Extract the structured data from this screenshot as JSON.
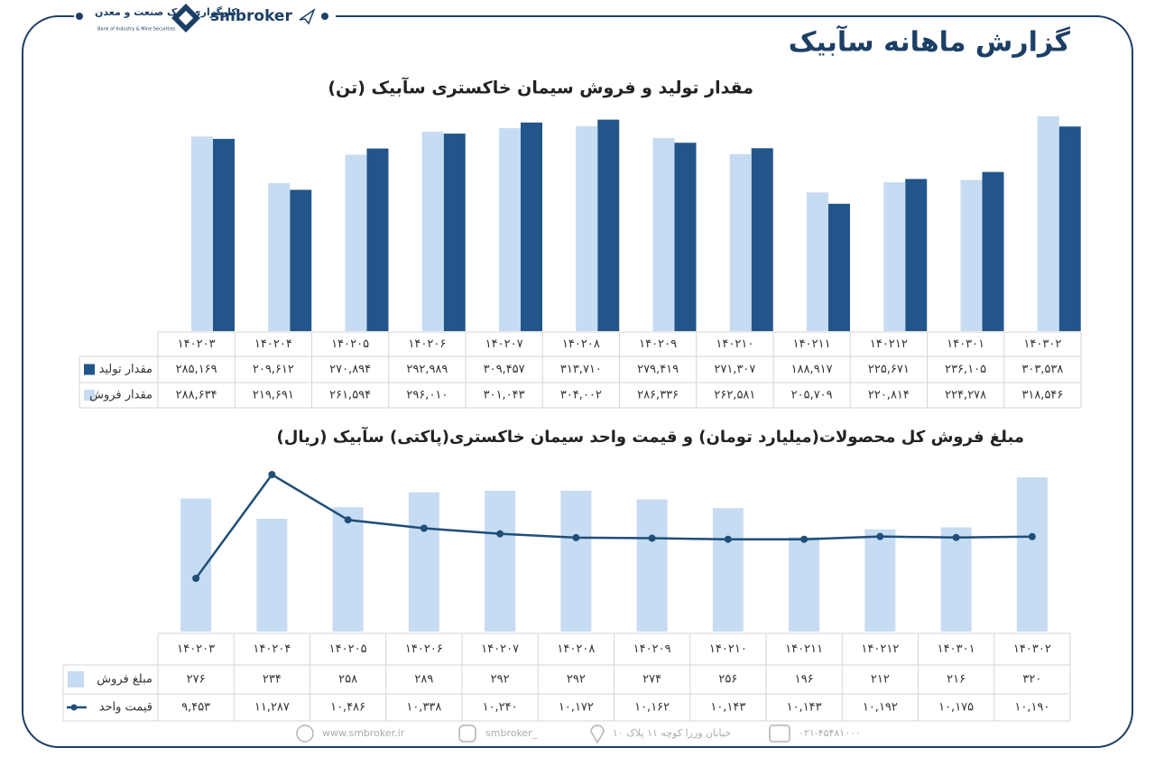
{
  "header": {
    "brand": "smbroker",
    "bank_name": "کارگزاری بانک صنعت و معدن",
    "bank_name_en": "Bank of Industry & Mine Securities",
    "title": "گزارش ماهانه سآبیک"
  },
  "chart_data": [
    {
      "type": "bar",
      "title": "مقدار تولید و فروش سیمان خاکستری سآبیک (تن)",
      "categories": [
        "۱۴۰۲۰۳",
        "۱۴۰۲۰۴",
        "۱۴۰۲۰۵",
        "۱۴۰۲۰۶",
        "۱۴۰۲۰۷",
        "۱۴۰۲۰۸",
        "۱۴۰۲۰۹",
        "۱۴۰۲۱۰",
        "۱۴۰۲۱۱",
        "۱۴۰۲۱۲",
        "۱۴۰۳۰۱",
        "۱۴۰۳۰۲"
      ],
      "series": [
        {
          "name": "مقدار تولید",
          "color": "#22558a",
          "values": [
            285169,
            209612,
            270894,
            292989,
            309457,
            313710,
            279419,
            271307,
            188917,
            225671,
            236105,
            303538
          ],
          "value_labels": [
            "۲۸۵,۱۶۹",
            "۲۰۹,۶۱۲",
            "۲۷۰,۸۹۴",
            "۲۹۲,۹۸۹",
            "۳۰۹,۴۵۷",
            "۳۱۳,۷۱۰",
            "۲۷۹,۴۱۹",
            "۲۷۱,۳۰۷",
            "۱۸۸,۹۱۷",
            "۲۲۵,۶۷۱",
            "۲۳۶,۱۰۵",
            "۳۰۳,۵۳۸"
          ]
        },
        {
          "name": "مقدار فروش",
          "color": "#c6dcf2",
          "values": [
            288634,
            219691,
            261594,
            296010,
            301043,
            304002,
            286336,
            262581,
            205709,
            220814,
            224278,
            318546
          ],
          "value_labels": [
            "۲۸۸,۶۳۴",
            "۲۱۹,۶۹۱",
            "۲۶۱,۵۹۴",
            "۲۹۶,۰۱۰",
            "۳۰۱,۰۴۳",
            "۳۰۴,۰۰۲",
            "۲۸۶,۳۳۶",
            "۲۶۲,۵۸۱",
            "۲۰۵,۷۰۹",
            "۲۲۰,۸۱۴",
            "۲۲۴,۲۷۸",
            "۳۱۸,۵۴۶"
          ]
        }
      ]
    },
    {
      "type": "combo",
      "title": "مبلغ فروش کل محصولات(میلیارد تومان) و قیمت واحد سیمان خاکستری(پاکتی) سآبیک (ریال)",
      "categories": [
        "۱۴۰۲۰۳",
        "۱۴۰۲۰۴",
        "۱۴۰۲۰۵",
        "۱۴۰۲۰۶",
        "۱۴۰۲۰۷",
        "۱۴۰۲۰۸",
        "۱۴۰۲۰۹",
        "۱۴۰۲۱۰",
        "۱۴۰۲۱۱",
        "۱۴۰۲۱۲",
        "۱۴۰۳۰۱",
        "۱۴۰۳۰۲"
      ],
      "series": [
        {
          "name": "مبلغ فروش",
          "type": "bar",
          "color": "#c6dcf2",
          "values": [
            276,
            234,
            258,
            289,
            292,
            292,
            274,
            256,
            196,
            212,
            216,
            320
          ],
          "value_labels": [
            "۲۷۶",
            "۲۳۴",
            "۲۵۸",
            "۲۸۹",
            "۲۹۲",
            "۲۹۲",
            "۲۷۴",
            "۲۵۶",
            "۱۹۶",
            "۲۱۲",
            "۲۱۶",
            "۳۲۰"
          ]
        },
        {
          "name": "قیمت واحد",
          "type": "line",
          "color": "#1f4e79",
          "values": [
            9453,
            11287,
            10486,
            10338,
            10240,
            10172,
            10162,
            10143,
            10143,
            10192,
            10175,
            10190
          ],
          "value_labels": [
            "۹,۴۵۳",
            "۱۱,۲۸۷",
            "۱۰,۴۸۶",
            "۱۰,۳۳۸",
            "۱۰,۲۴۰",
            "۱۰,۱۷۲",
            "۱۰,۱۶۲",
            "۱۰,۱۴۳",
            "۱۰,۱۴۳",
            "۱۰,۱۹۲",
            "۱۰,۱۷۵",
            "۱۰,۱۹۰"
          ]
        }
      ]
    }
  ],
  "footer": {
    "website": "www.smbroker.ir",
    "instagram": "smbroker_",
    "address": "خیابان وزرا کوچه ۱۱ پلاک ۱۰",
    "phone": "۰۲۱-۴۵۴۸۱۰۰۰"
  }
}
